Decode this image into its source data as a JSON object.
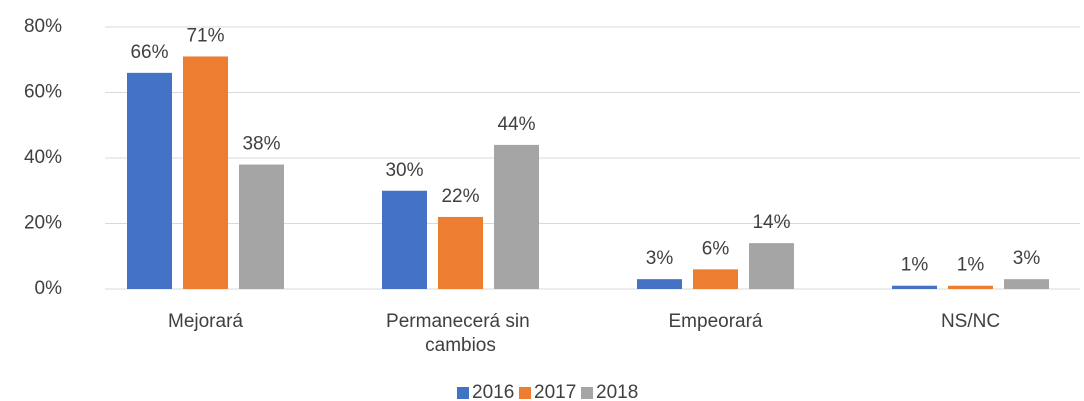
{
  "chart_data": {
    "type": "bar",
    "categories": [
      "Mejorará",
      "Permanecerá sin cambios",
      "Empeorará",
      "NS/NC"
    ],
    "series": [
      {
        "name": "2016",
        "color": "#4472c4",
        "values": [
          66,
          30,
          3,
          1
        ],
        "value_labels": [
          "66%",
          "30%",
          "3%",
          "1%"
        ]
      },
      {
        "name": "2017",
        "color": "#ed7d31",
        "values": [
          71,
          22,
          6,
          1
        ],
        "value_labels": [
          "71%",
          "22%",
          "6%",
          "1%"
        ]
      },
      {
        "name": "2018",
        "color": "#a5a5a5",
        "values": [
          38,
          44,
          14,
          3
        ],
        "value_labels": [
          "38%",
          "44%",
          "14%",
          "3%"
        ]
      }
    ],
    "ylim": [
      0,
      80
    ],
    "yticks": [
      {
        "value": 0,
        "label": "0%"
      },
      {
        "value": 20,
        "label": "20%"
      },
      {
        "value": 40,
        "label": "40%"
      },
      {
        "value": 60,
        "label": "60%"
      },
      {
        "value": 80,
        "label": "80%"
      }
    ],
    "grid": true,
    "legend": "bottom"
  }
}
